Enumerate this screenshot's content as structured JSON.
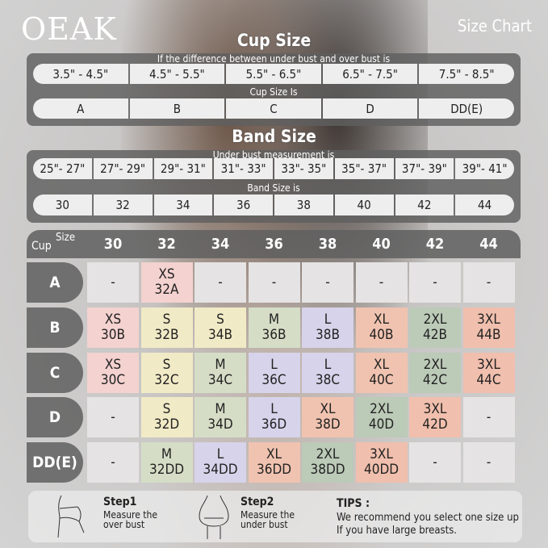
{
  "brand": "OEAK",
  "page_title": "Size Chart",
  "cup_section": {
    "title": "Cup Size",
    "caption": "If the  difference between under bust and over bust is",
    "ranges": [
      "3.5\" -  4.5\"",
      "4.5\" -  5.5\"",
      "5.5\" -  6.5\"",
      "6.5\" -  7.5\"",
      "7.5\" -  8.5\""
    ],
    "result_caption": "Cup Size Is",
    "cups": [
      "A",
      "B",
      "C",
      "D",
      "DD(E)"
    ]
  },
  "band_section": {
    "title": "Band Size",
    "caption": "Under bust measurement is",
    "ranges": [
      "25\"- 27\"",
      "27\"- 29\"",
      "29\"- 31\"",
      "31\"- 33\"",
      "33\"- 35\"",
      "35\"- 37\"",
      "37\"- 39\"",
      "39\"- 41\""
    ],
    "result_caption": "Band Size is",
    "bands": [
      "30",
      "32",
      "34",
      "36",
      "38",
      "40",
      "42",
      "44"
    ]
  },
  "grid": {
    "cup_label": "Cup",
    "size_label": "Size",
    "columns": [
      "30",
      "32",
      "34",
      "36",
      "38",
      "40",
      "42",
      "44"
    ],
    "colors": {
      "XS": "#f3d2cf",
      "S": "#f1eac6",
      "M": "#d5ddc6",
      "L": "#d7d3ea",
      "XL": "#f0c3b0",
      "2XL": "#bccab8",
      "3XL": "#f0bfad",
      "-": "#e5e3e3"
    },
    "rows": [
      {
        "cup": "A",
        "cells": [
          [
            "-"
          ],
          [
            "XS",
            "32A"
          ],
          [
            "-"
          ],
          [
            "-"
          ],
          [
            "-"
          ],
          [
            "-"
          ],
          [
            "-"
          ],
          [
            "-"
          ]
        ]
      },
      {
        "cup": "B",
        "cells": [
          [
            "XS",
            "30B"
          ],
          [
            "S",
            "32B"
          ],
          [
            "S",
            "34B"
          ],
          [
            "M",
            "36B"
          ],
          [
            "L",
            "38B"
          ],
          [
            "XL",
            "40B"
          ],
          [
            "2XL",
            "42B"
          ],
          [
            "3XL",
            "44B"
          ]
        ]
      },
      {
        "cup": "C",
        "cells": [
          [
            "XS",
            "30C"
          ],
          [
            "S",
            "32C"
          ],
          [
            "M",
            "34C"
          ],
          [
            "L",
            "36C"
          ],
          [
            "L",
            "38C"
          ],
          [
            "XL",
            "40C"
          ],
          [
            "2XL",
            "42C"
          ],
          [
            "3XL",
            "44C"
          ]
        ]
      },
      {
        "cup": "D",
        "cells": [
          [
            "-"
          ],
          [
            "S",
            "32D"
          ],
          [
            "M",
            "34D"
          ],
          [
            "L",
            "36D"
          ],
          [
            "XL",
            "38D"
          ],
          [
            "2XL",
            "40D"
          ],
          [
            "3XL",
            "42D"
          ],
          [
            "-"
          ]
        ]
      },
      {
        "cup": "DD(E)",
        "cells": [
          [
            "-"
          ],
          [
            "M",
            "32DD"
          ],
          [
            "L",
            "34DD"
          ],
          [
            "XL",
            "36DD"
          ],
          [
            "2XL",
            "38DD"
          ],
          [
            "3XL",
            "40DD"
          ],
          [
            "-"
          ],
          [
            "-"
          ]
        ]
      }
    ]
  },
  "footer": {
    "step1_title": "Step1",
    "step1_text": "Measure the over bust",
    "step2_title": "Step2",
    "step2_text": "Measure the under bust",
    "tips_title": "TIPS :",
    "tips_line1": "We recommend you select one size up",
    "tips_line2": "If you have large breasts."
  }
}
